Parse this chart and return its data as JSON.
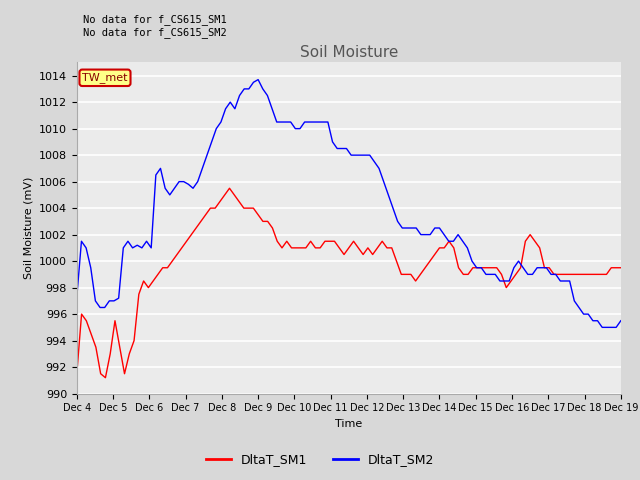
{
  "title": "Soil Moisture",
  "ylabel": "Soil Moisture (mV)",
  "xlabel": "Time",
  "ylim": [
    990,
    1015
  ],
  "annotation_text": "No data for f_CS615_SM1\nNo data for f_CS615_SM2",
  "legend_box_text": "TW_met",
  "legend_entries": [
    "DltaT_SM1",
    "DltaT_SM2"
  ],
  "line_colors": [
    "red",
    "blue"
  ],
  "bg_color": "#d8d8d8",
  "plot_bg_color": "#ebebeb",
  "xtick_labels": [
    "Dec 4",
    "Dec 5",
    "Dec 6",
    "Dec 7",
    "Dec 8",
    "Dec 9",
    "Dec 10",
    "Dec 11",
    "Dec 12",
    "Dec 13",
    "Dec 14",
    "Dec 15",
    "Dec 16",
    "Dec 17",
    "Dec 18",
    "Dec 19"
  ],
  "sm1": [
    991.5,
    996.0,
    995.5,
    994.5,
    993.5,
    991.5,
    991.2,
    993.0,
    995.5,
    993.5,
    991.5,
    993.0,
    994.0,
    997.5,
    998.5,
    998.0,
    998.5,
    999.0,
    999.5,
    999.5,
    1000.0,
    1000.5,
    1001.0,
    1001.5,
    1002.0,
    1002.5,
    1003.0,
    1003.5,
    1004.0,
    1004.0,
    1004.5,
    1005.0,
    1005.5,
    1005.0,
    1004.5,
    1004.0,
    1004.0,
    1004.0,
    1003.5,
    1003.0,
    1003.0,
    1002.5,
    1001.5,
    1001.0,
    1001.5,
    1001.0,
    1001.0,
    1001.0,
    1001.0,
    1001.5,
    1001.0,
    1001.0,
    1001.5,
    1001.5,
    1001.5,
    1001.0,
    1000.5,
    1001.0,
    1001.5,
    1001.0,
    1000.5,
    1001.0,
    1000.5,
    1001.0,
    1001.5,
    1001.0,
    1001.0,
    1000.0,
    999.0,
    999.0,
    999.0,
    998.5,
    999.0,
    999.5,
    1000.0,
    1000.5,
    1001.0,
    1001.0,
    1001.5,
    1001.0,
    999.5,
    999.0,
    999.0,
    999.5,
    999.5,
    999.5,
    999.5,
    999.5,
    999.5,
    999.0,
    998.0,
    998.5,
    999.0,
    999.5,
    1001.5,
    1002.0,
    1001.5,
    1001.0,
    999.5,
    999.5,
    999.0,
    999.0,
    999.0,
    999.0,
    999.0,
    999.0,
    999.0,
    999.0,
    999.0,
    999.0,
    999.0,
    999.0,
    999.5,
    999.5,
    999.5
  ],
  "sm2": [
    997.3,
    1001.5,
    1001.0,
    999.5,
    997.0,
    996.5,
    996.5,
    997.0,
    997.0,
    997.2,
    1001.0,
    1001.5,
    1001.0,
    1001.2,
    1001.0,
    1001.5,
    1001.0,
    1006.5,
    1007.0,
    1005.5,
    1005.0,
    1005.5,
    1006.0,
    1006.0,
    1005.8,
    1005.5,
    1006.0,
    1007.0,
    1008.0,
    1009.0,
    1010.0,
    1010.5,
    1011.5,
    1012.0,
    1011.5,
    1012.5,
    1013.0,
    1013.0,
    1013.5,
    1013.7,
    1013.0,
    1012.5,
    1011.5,
    1010.5,
    1010.5,
    1010.5,
    1010.5,
    1010.0,
    1010.0,
    1010.5,
    1010.5,
    1010.5,
    1010.5,
    1010.5,
    1010.5,
    1009.0,
    1008.5,
    1008.5,
    1008.5,
    1008.0,
    1008.0,
    1008.0,
    1008.0,
    1008.0,
    1007.5,
    1007.0,
    1006.0,
    1005.0,
    1004.0,
    1003.0,
    1002.5,
    1002.5,
    1002.5,
    1002.5,
    1002.0,
    1002.0,
    1002.0,
    1002.5,
    1002.5,
    1002.0,
    1001.5,
    1001.5,
    1002.0,
    1001.5,
    1001.0,
    1000.0,
    999.5,
    999.5,
    999.0,
    999.0,
    999.0,
    998.5,
    998.5,
    998.5,
    999.5,
    1000.0,
    999.5,
    999.0,
    999.0,
    999.5,
    999.5,
    999.5,
    999.0,
    999.0,
    998.5,
    998.5,
    998.5,
    997.0,
    996.5,
    996.0,
    996.0,
    995.5,
    995.5,
    995.0,
    995.0,
    995.0,
    995.0,
    995.5
  ]
}
